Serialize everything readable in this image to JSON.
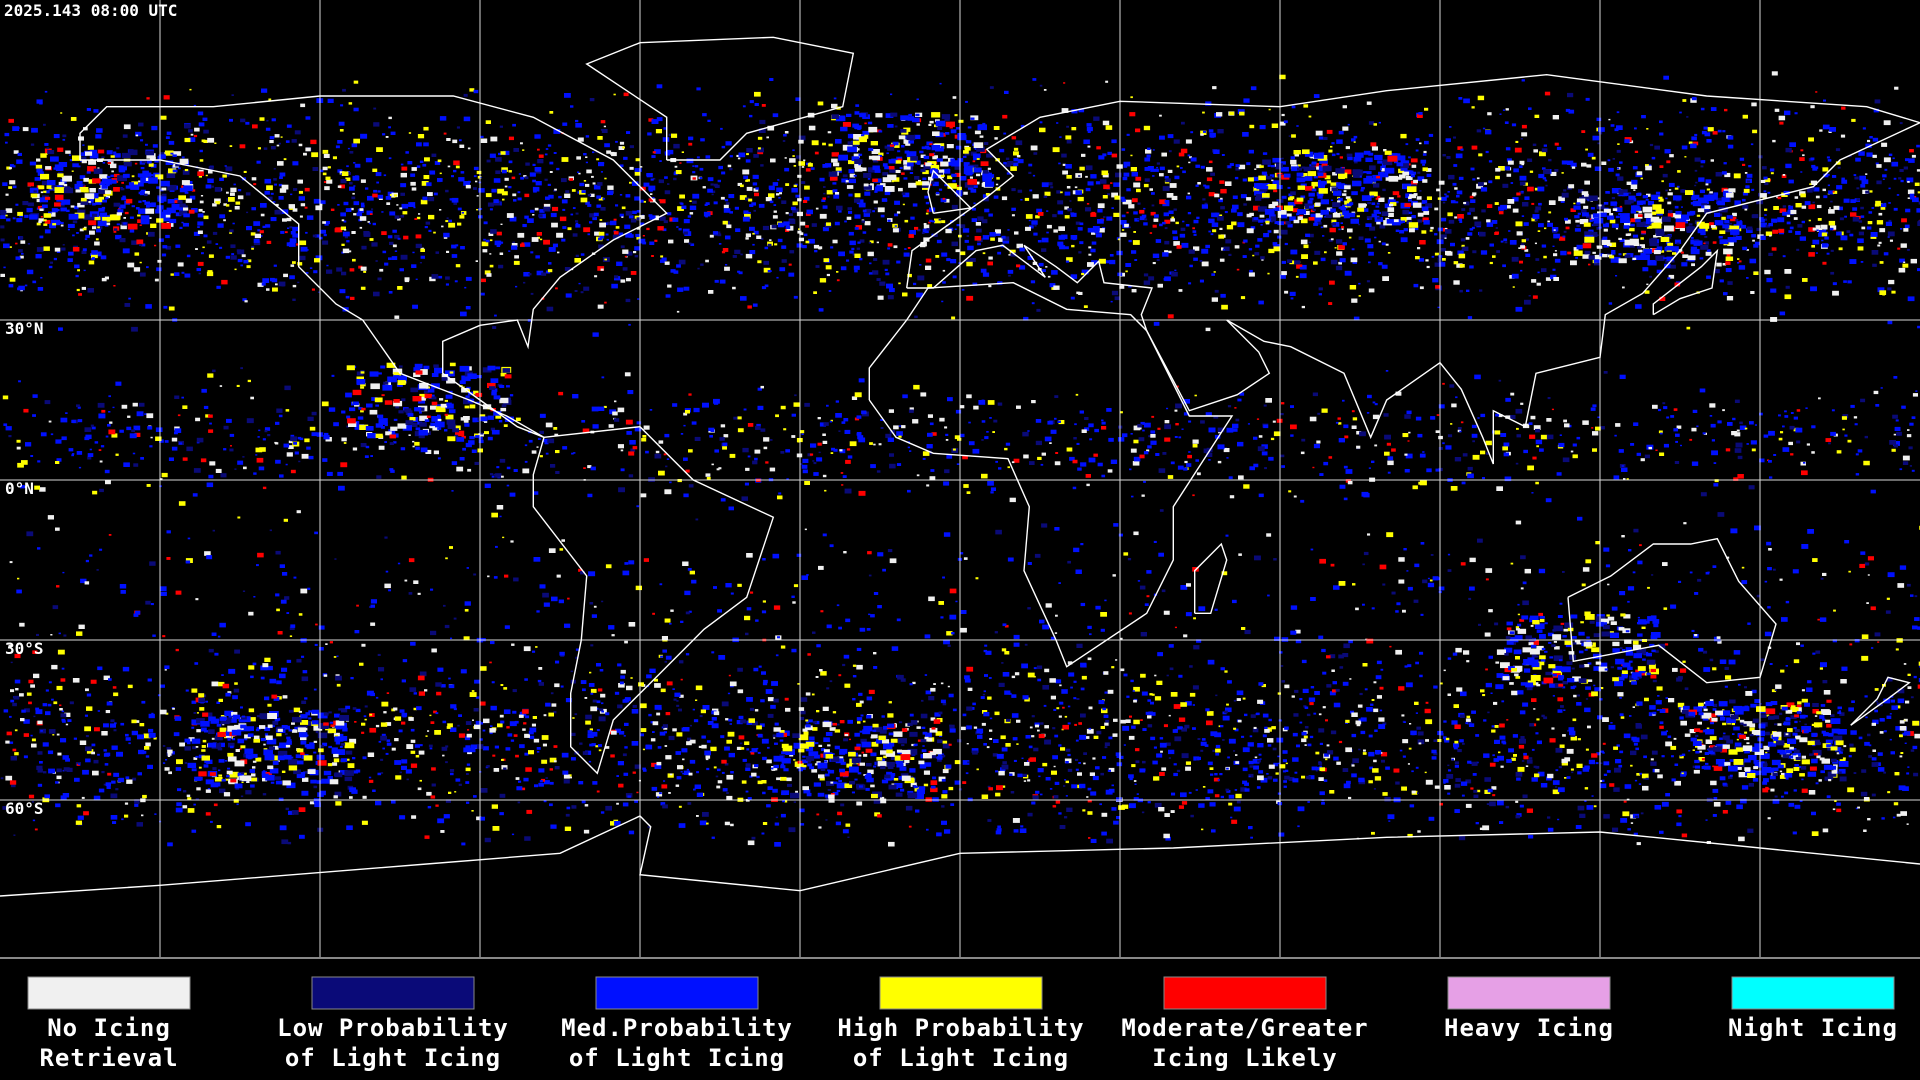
{
  "timestamp": "2025.143 08:00 UTC",
  "latitude_labels": [
    "30°N",
    "0°N",
    "30°S",
    "60°S"
  ],
  "legend": [
    {
      "lines": [
        "No Icing",
        "Retrieval"
      ],
      "color": "#f0f0f0"
    },
    {
      "lines": [
        "Low Probability",
        "of Light Icing"
      ],
      "color": "#0a0a78"
    },
    {
      "lines": [
        "Med.Probability",
        "of Light Icing"
      ],
      "color": "#0010ff"
    },
    {
      "lines": [
        "High Probability",
        "of Light Icing"
      ],
      "color": "#ffff00"
    },
    {
      "lines": [
        "Moderate/Greater",
        "Icing Likely"
      ],
      "color": "#ff0000"
    },
    {
      "lines": [
        "Heavy Icing"
      ],
      "color": "#e6a0e6"
    },
    {
      "lines": [
        "Night Icing"
      ],
      "color": "#00ffff"
    }
  ]
}
